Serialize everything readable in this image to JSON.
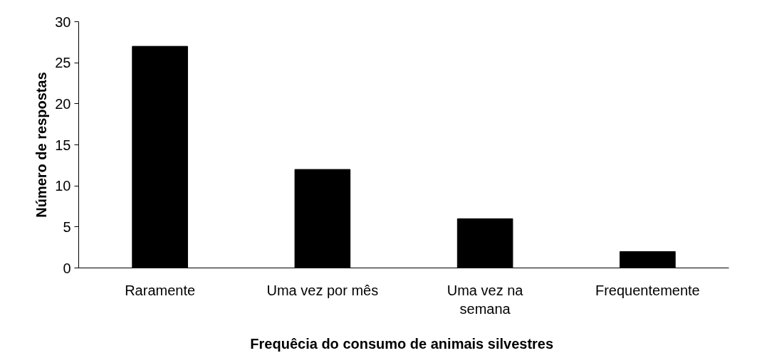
{
  "chart_data": {
    "type": "bar",
    "xlabel": "Frequêcia do consumo  de animais silvestres",
    "ylabel": "Número de respostas",
    "categories": [
      "Raramente",
      "Uma vez por mês",
      "Uma vez na semana",
      "Frequentemente"
    ],
    "values": [
      27,
      12,
      6,
      2
    ],
    "color": "#000000",
    "ylim": [
      0,
      30
    ],
    "yticks": [
      0,
      5,
      10,
      15,
      20,
      25,
      30
    ],
    "grid": false
  }
}
